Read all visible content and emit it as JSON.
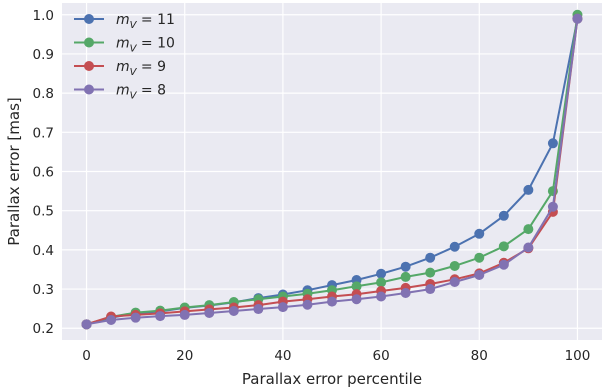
{
  "chart_data": {
    "type": "line",
    "xlabel": "Parallax error percentile",
    "ylabel": "Parallax error [mas]",
    "xlim": [
      -5,
      105
    ],
    "ylim": [
      0.17,
      1.03
    ],
    "xticks": [
      0,
      20,
      40,
      60,
      80,
      100
    ],
    "yticks": [
      0.2,
      0.3,
      0.4,
      0.5,
      0.6,
      0.7,
      0.8,
      0.9,
      1.0
    ],
    "ytick_labels": [
      "0.2",
      "0.3",
      "0.4",
      "0.5",
      "0.6",
      "0.7",
      "0.8",
      "0.9",
      "1.0"
    ],
    "grid": true,
    "background": "#eaeaf2",
    "legend_position": "top-left",
    "x": [
      0,
      5,
      10,
      15,
      20,
      25,
      30,
      35,
      40,
      45,
      50,
      55,
      60,
      65,
      70,
      75,
      80,
      85,
      90,
      95,
      100
    ],
    "series": [
      {
        "name": "m_V = 11",
        "legend": {
          "base": "m",
          "sub": "V",
          "rest": " = 11"
        },
        "color": "#4c72b0",
        "values": [
          0.21,
          0.227,
          0.238,
          0.243,
          0.252,
          0.258,
          0.266,
          0.277,
          0.286,
          0.297,
          0.31,
          0.323,
          0.339,
          0.357,
          0.38,
          0.408,
          0.441,
          0.487,
          0.553,
          0.672,
          0.99
        ]
      },
      {
        "name": "m_V = 10",
        "legend": {
          "base": "m",
          "sub": "V",
          "rest": " = 10"
        },
        "color": "#55a868",
        "values": [
          0.21,
          0.229,
          0.24,
          0.245,
          0.253,
          0.259,
          0.267,
          0.274,
          0.281,
          0.288,
          0.297,
          0.307,
          0.317,
          0.331,
          0.342,
          0.359,
          0.38,
          0.409,
          0.453,
          0.55,
          1.0
        ]
      },
      {
        "name": "m_V = 9",
        "legend": {
          "base": "m",
          "sub": "V",
          "rest": " = 9"
        },
        "color": "#c44e52",
        "values": [
          0.21,
          0.23,
          0.234,
          0.238,
          0.243,
          0.248,
          0.253,
          0.259,
          0.268,
          0.274,
          0.281,
          0.287,
          0.295,
          0.303,
          0.313,
          0.325,
          0.34,
          0.367,
          0.404,
          0.497,
          0.99
        ]
      },
      {
        "name": "m_V = 8",
        "legend": {
          "base": "m",
          "sub": "V",
          "rest": " = 8"
        },
        "color": "#8172b2",
        "values": [
          0.21,
          0.221,
          0.227,
          0.231,
          0.234,
          0.239,
          0.244,
          0.249,
          0.254,
          0.26,
          0.268,
          0.274,
          0.281,
          0.29,
          0.3,
          0.318,
          0.336,
          0.362,
          0.406,
          0.51,
          0.99
        ]
      }
    ]
  }
}
